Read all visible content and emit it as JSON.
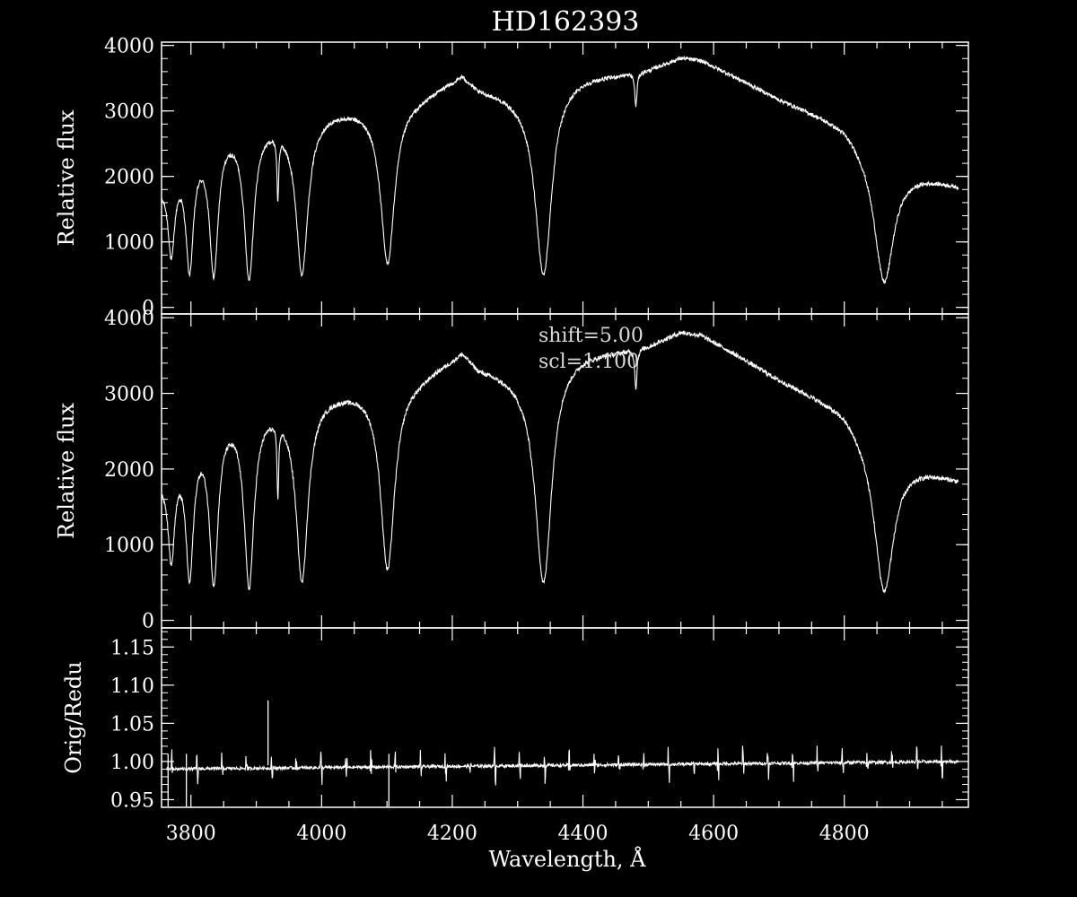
{
  "chart_data": {
    "title": "HD162393",
    "xlabel": "Wavelength, Å",
    "x_range": [
      3755,
      4990
    ],
    "x_ticks": [
      3800,
      4000,
      4200,
      4400,
      4600,
      4800
    ],
    "x_tick_labels": [
      "3800",
      "4000",
      "4200",
      "4400",
      "4600",
      "4800"
    ],
    "panels": [
      {
        "id": "observed",
        "type": "line",
        "ylabel": "Relative flux",
        "y_range": [
          -100,
          4050
        ],
        "y_ticks": [
          0,
          1000,
          2000,
          3000,
          4000
        ],
        "y_tick_labels": [
          "0",
          "1000",
          "2000",
          "3000",
          "4000"
        ],
        "x_end": 4975,
        "annotations": []
      },
      {
        "id": "reduced",
        "type": "line",
        "ylabel": "Relative flux",
        "y_range": [
          -100,
          4050
        ],
        "y_ticks": [
          0,
          1000,
          2000,
          3000,
          4000
        ],
        "y_tick_labels": [
          "0",
          "1000",
          "2000",
          "3000",
          "4000"
        ],
        "x_end": 4975,
        "annotations": [
          "shift=5.00",
          "scl=1.100"
        ]
      },
      {
        "id": "ratio",
        "type": "line",
        "ylabel": "Orig/Redu",
        "y_range": [
          0.94,
          1.175
        ],
        "y_ticks": [
          0.95,
          1.0,
          1.05,
          1.1,
          1.15
        ],
        "y_tick_labels": [
          "0.95",
          "1.00",
          "1.05",
          "1.10",
          "1.15"
        ],
        "x_end": 4975,
        "annotations": []
      }
    ],
    "continuum": [
      [
        3755,
        1900
      ],
      [
        3800,
        2450
      ],
      [
        3850,
        2750
      ],
      [
        3900,
        2850
      ],
      [
        3950,
        2870
      ],
      [
        4000,
        3000
      ],
      [
        4100,
        3150
      ],
      [
        4150,
        3250
      ],
      [
        4200,
        3500
      ],
      [
        4215,
        3600
      ],
      [
        4240,
        3380
      ],
      [
        4300,
        3250
      ],
      [
        4330,
        3200
      ],
      [
        4360,
        3480
      ],
      [
        4400,
        3550
      ],
      [
        4450,
        3580
      ],
      [
        4500,
        3650
      ],
      [
        4550,
        3830
      ],
      [
        4580,
        3790
      ],
      [
        4620,
        3600
      ],
      [
        4700,
        3200
      ],
      [
        4800,
        2800
      ],
      [
        4850,
        2350
      ],
      [
        4900,
        2100
      ],
      [
        4975,
        1880
      ]
    ],
    "absorption_lines": [
      {
        "center": 3770,
        "depth": 1200,
        "width": 6
      },
      {
        "center": 3798,
        "depth": 1750,
        "width": 7
      },
      {
        "center": 3835,
        "depth": 2050,
        "width": 8
      },
      {
        "center": 3889,
        "depth": 2300,
        "width": 9
      },
      {
        "center": 3933,
        "depth": 950,
        "width": 1.5
      },
      {
        "center": 3970,
        "depth": 2350,
        "width": 11
      },
      {
        "center": 4101,
        "depth": 2450,
        "width": 13
      },
      {
        "center": 4340,
        "depth": 2780,
        "width": 15
      },
      {
        "center": 4481,
        "depth": 520,
        "width": 2
      },
      {
        "center": 4861,
        "depth": 1900,
        "width": 18
      }
    ],
    "ratio_profile": {
      "baseline_start": 0.99,
      "baseline_end": 1.0,
      "spike_top": 1.08,
      "spike_x": 3918,
      "spike_low_x": [
        3765,
        3793,
        4103
      ],
      "oscillation_spacing": 38
    }
  }
}
